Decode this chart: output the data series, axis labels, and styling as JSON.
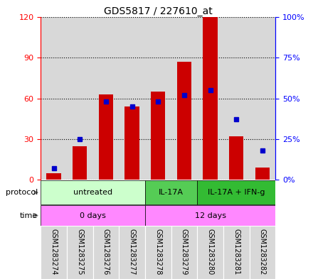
{
  "title": "GDS5817 / 227610_at",
  "samples": [
    "GSM1283274",
    "GSM1283275",
    "GSM1283276",
    "GSM1283277",
    "GSM1283278",
    "GSM1283279",
    "GSM1283280",
    "GSM1283281",
    "GSM1283282"
  ],
  "counts": [
    5,
    25,
    63,
    54,
    65,
    87,
    120,
    32,
    9
  ],
  "percentiles": [
    7,
    25,
    48,
    45,
    48,
    52,
    55,
    37,
    18
  ],
  "protocol_groups": [
    {
      "label": "untreated",
      "start": 0,
      "end": 3,
      "color": "#ccffcc"
    },
    {
      "label": "IL-17A",
      "start": 4,
      "end": 5,
      "color": "#55cc55"
    },
    {
      "label": "IL-17A + IFN-g",
      "start": 6,
      "end": 8,
      "color": "#33bb33"
    }
  ],
  "time_groups": [
    {
      "label": "0 days",
      "start": 0,
      "end": 3,
      "color": "#ff88ff"
    },
    {
      "label": "12 days",
      "start": 4,
      "end": 8,
      "color": "#ff88ff"
    }
  ],
  "bar_color": "#cc0000",
  "dot_color": "#0000cc",
  "ylim_left": [
    0,
    120
  ],
  "ylim_right": [
    0,
    100
  ],
  "yticks_left": [
    0,
    30,
    60,
    90,
    120
  ],
  "yticks_right": [
    0,
    25,
    50,
    75,
    100
  ],
  "ytick_labels_right": [
    "0%",
    "25%",
    "50%",
    "75%",
    "100%"
  ],
  "plot_bg_color": "#d8d8d8"
}
